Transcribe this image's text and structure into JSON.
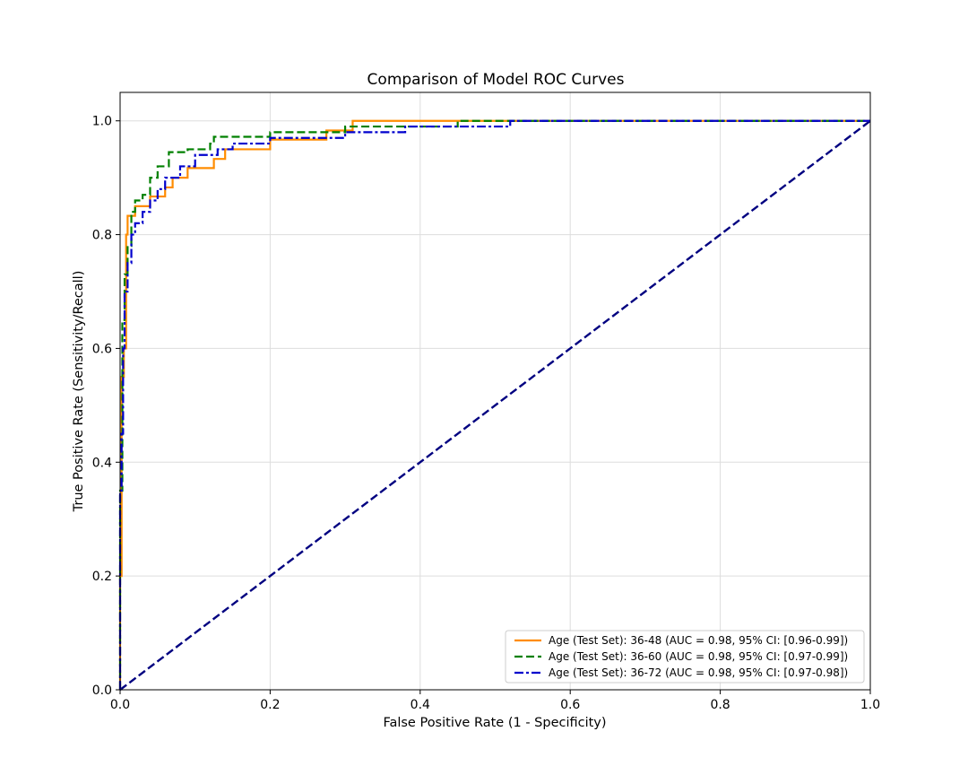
{
  "chart_data": {
    "type": "line",
    "title": "Comparison of Model ROC Curves",
    "xlabel": "False Positive Rate (1 - Specificity)",
    "ylabel": "True Positive Rate (Sensitivity/Recall)",
    "xlim": [
      0.0,
      1.0
    ],
    "ylim": [
      0.0,
      1.05
    ],
    "xticks": [
      0.0,
      0.2,
      0.4,
      0.6,
      0.8,
      1.0
    ],
    "yticks": [
      0.0,
      0.2,
      0.4,
      0.6,
      0.8,
      1.0
    ],
    "xtick_labels": [
      "0.0",
      "0.2",
      "0.4",
      "0.6",
      "0.8",
      "1.0"
    ],
    "ytick_labels": [
      "0.0",
      "0.2",
      "0.4",
      "0.6",
      "0.8",
      "1.0"
    ],
    "grid": true,
    "legend_position": "lower-right",
    "series": [
      {
        "name": "Age (Test Set): 36-48 (AUC = 0.98, 95% CI: [0.96-0.99])",
        "color": "#ff8c00",
        "style": "solid",
        "x": [
          0,
          0,
          0.002,
          0.002,
          0.005,
          0.005,
          0.008,
          0.008,
          0.01,
          0.01,
          0.02,
          0.02,
          0.04,
          0.04,
          0.06,
          0.06,
          0.07,
          0.07,
          0.09,
          0.09,
          0.125,
          0.125,
          0.14,
          0.14,
          0.2,
          0.2,
          0.275,
          0.275,
          0.31,
          0.31,
          1.0
        ],
        "y": [
          0,
          0.2,
          0.2,
          0.55,
          0.55,
          0.6,
          0.6,
          0.8,
          0.8,
          0.833,
          0.833,
          0.85,
          0.85,
          0.867,
          0.867,
          0.883,
          0.883,
          0.9,
          0.9,
          0.917,
          0.917,
          0.933,
          0.933,
          0.95,
          0.95,
          0.967,
          0.967,
          0.983,
          0.983,
          1.0,
          1.0
        ]
      },
      {
        "name": "Age (Test Set): 36-60 (AUC = 0.98, 95% CI: [0.97-0.99])",
        "color": "#008000",
        "style": "dashed",
        "x": [
          0,
          0,
          0.003,
          0.003,
          0.006,
          0.006,
          0.01,
          0.01,
          0.015,
          0.015,
          0.02,
          0.02,
          0.03,
          0.03,
          0.04,
          0.04,
          0.05,
          0.05,
          0.065,
          0.065,
          0.09,
          0.09,
          0.12,
          0.12,
          0.125,
          0.125,
          0.2,
          0.2,
          0.3,
          0.3,
          0.45,
          0.45,
          1.0
        ],
        "y": [
          0,
          0.35,
          0.35,
          0.65,
          0.65,
          0.73,
          0.73,
          0.78,
          0.78,
          0.84,
          0.84,
          0.86,
          0.86,
          0.87,
          0.87,
          0.9,
          0.9,
          0.92,
          0.92,
          0.945,
          0.945,
          0.95,
          0.95,
          0.96,
          0.96,
          0.972,
          0.972,
          0.98,
          0.98,
          0.99,
          0.99,
          1.0,
          1.0
        ]
      },
      {
        "name": "Age (Test Set): 36-72 (AUC = 0.98, 95% CI: [0.97-0.98])",
        "color": "#0000cd",
        "style": "dashdot",
        "x": [
          0,
          0,
          0.002,
          0.002,
          0.004,
          0.004,
          0.006,
          0.006,
          0.01,
          0.01,
          0.015,
          0.015,
          0.02,
          0.02,
          0.03,
          0.03,
          0.04,
          0.04,
          0.05,
          0.05,
          0.06,
          0.06,
          0.08,
          0.08,
          0.1,
          0.1,
          0.13,
          0.13,
          0.15,
          0.15,
          0.2,
          0.2,
          0.3,
          0.3,
          0.38,
          0.38,
          0.52,
          0.52,
          1.0
        ],
        "y": [
          0,
          0.35,
          0.35,
          0.45,
          0.45,
          0.6,
          0.6,
          0.7,
          0.7,
          0.75,
          0.75,
          0.8,
          0.8,
          0.82,
          0.82,
          0.84,
          0.84,
          0.86,
          0.86,
          0.88,
          0.88,
          0.9,
          0.9,
          0.92,
          0.92,
          0.94,
          0.94,
          0.95,
          0.95,
          0.96,
          0.96,
          0.97,
          0.97,
          0.98,
          0.98,
          0.99,
          0.99,
          1.0,
          1.0
        ]
      }
    ],
    "reference_line": {
      "x": [
        0,
        1
      ],
      "y": [
        0,
        1
      ],
      "color": "#000080",
      "style": "dashed"
    }
  }
}
